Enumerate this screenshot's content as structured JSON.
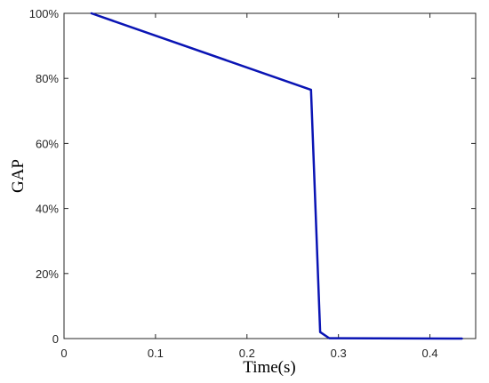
{
  "chart_data": {
    "type": "line",
    "xlabel": "Time(s)",
    "ylabel": "GAP",
    "xlim": [
      0,
      0.45
    ],
    "ylim": [
      0,
      100
    ],
    "grid": false,
    "x_ticks": [
      0,
      0.1,
      0.2,
      0.3,
      0.4
    ],
    "x_tick_labels": [
      "0",
      "0.1",
      "0.2",
      "0.3",
      "0.4"
    ],
    "y_ticks": [
      0,
      20,
      40,
      60,
      80,
      100
    ],
    "y_tick_labels": [
      "0",
      "20%",
      "40%",
      "60%",
      "80%",
      "100%"
    ],
    "series": [
      {
        "color": "#0a14b4",
        "points": [
          {
            "x": 0.03,
            "y": 100
          },
          {
            "x": 0.27,
            "y": 76.5
          },
          {
            "x": 0.28,
            "y": 2
          },
          {
            "x": 0.29,
            "y": 0.1
          },
          {
            "x": 0.435,
            "y": 0
          }
        ]
      }
    ]
  }
}
